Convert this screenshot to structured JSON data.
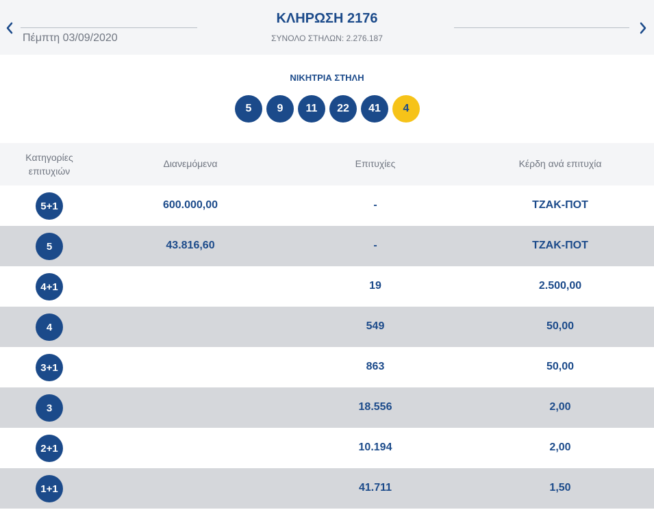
{
  "header": {
    "date": "Πέμπτη 03/09/2020",
    "title": "ΚΛΗΡΩΣΗ 2176",
    "subtitle": "ΣΥΝΟΛΟ ΣΤΗΛΩΝ: 2.276.187",
    "prev_icon": "chevron-left-icon",
    "next_icon": "chevron-right-icon"
  },
  "winning": {
    "title": "ΝΙΚΗΤΡΙΑ ΣΤΗΛΗ",
    "numbers": [
      "5",
      "9",
      "11",
      "22",
      "41"
    ],
    "bonus": "4"
  },
  "table": {
    "headers": {
      "category_line1": "Κατηγορίες",
      "category_line2": "επιτυχιών",
      "distributed": "Διανεμόμενα",
      "wins": "Επιτυχίες",
      "prize": "Κέρδη ανά επιτυχία"
    },
    "rows": [
      {
        "category": "5+1",
        "distributed": "600.000,00",
        "wins": "-",
        "prize": "ΤΖΑΚ-ΠΟΤ"
      },
      {
        "category": "5",
        "distributed": "43.816,60",
        "wins": "-",
        "prize": "ΤΖΑΚ-ΠΟΤ"
      },
      {
        "category": "4+1",
        "distributed": "",
        "wins": "19",
        "prize": "2.500,00"
      },
      {
        "category": "4",
        "distributed": "",
        "wins": "549",
        "prize": "50,00"
      },
      {
        "category": "3+1",
        "distributed": "",
        "wins": "863",
        "prize": "50,00"
      },
      {
        "category": "3",
        "distributed": "",
        "wins": "18.556",
        "prize": "2,00"
      },
      {
        "category": "2+1",
        "distributed": "",
        "wins": "10.194",
        "prize": "2,00"
      },
      {
        "category": "1+1",
        "distributed": "",
        "wins": "41.711",
        "prize": "1,50"
      }
    ]
  },
  "colors": {
    "primary": "#1b4a8a",
    "bonus": "#f6c319",
    "header_bg": "#f4f5f7",
    "alt_row_bg": "#d5d7db"
  }
}
